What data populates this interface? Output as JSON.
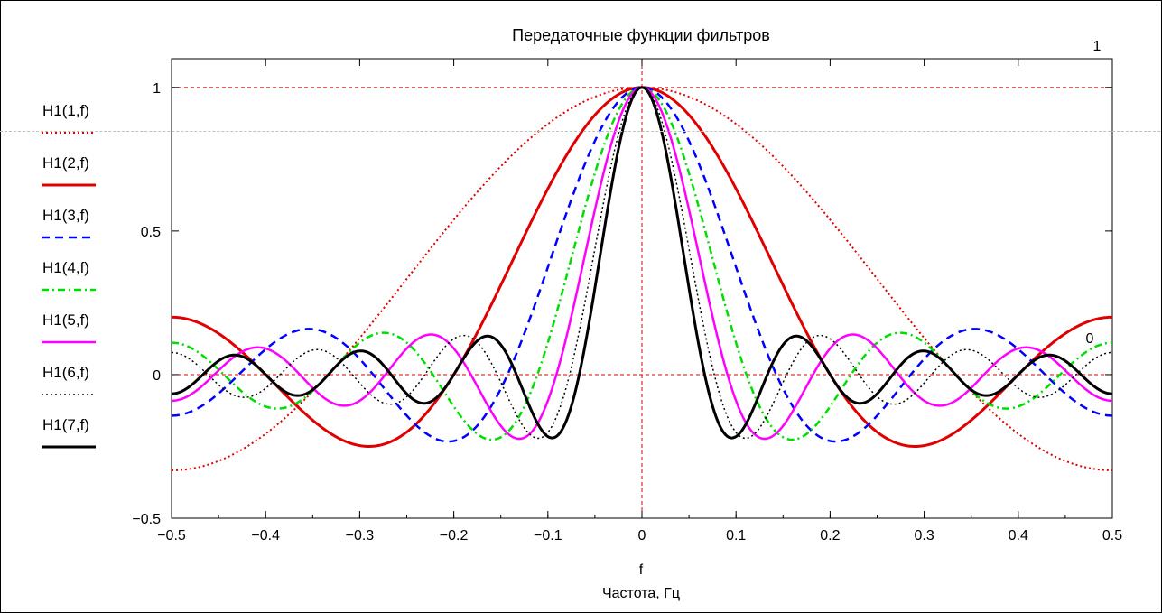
{
  "chart_data": {
    "type": "line",
    "title": "Передаточные функции фильтров",
    "xvar": "f",
    "xlabel": "Частота, Гц",
    "xlim": [
      -0.5,
      0.5
    ],
    "ylim": [
      -0.5,
      1.1
    ],
    "xticks": [
      -0.5,
      -0.4,
      -0.3,
      -0.2,
      -0.1,
      0,
      0.1,
      0.2,
      0.3,
      0.4,
      0.5
    ],
    "xtick_labels": [
      "−0.5",
      "−0.4",
      "−0.3",
      "−0.2",
      "−0.1",
      "0",
      "0.1",
      "0.2",
      "0.3",
      "0.4",
      "0.5"
    ],
    "yticks": [
      -0.5,
      0,
      0.5,
      1
    ],
    "ytick_labels": [
      "−0.5",
      "0",
      "0.5",
      "1"
    ],
    "marker_labels": {
      "right_top": "1",
      "right_zero": "0"
    },
    "reference_lines": {
      "horizontal": [
        1,
        0
      ],
      "vertical": [
        0
      ],
      "color": "#e00000",
      "style": "dashed"
    },
    "series": [
      {
        "name": "H1(1,f)",
        "color": "#e00000",
        "style": "dotted",
        "width": 2,
        "half_window": 1
      },
      {
        "name": "H1(2,f)",
        "color": "#e00000",
        "style": "solid",
        "width": 3,
        "half_window": 2
      },
      {
        "name": "H1(3,f)",
        "color": "#0000ff",
        "style": "dashed",
        "width": 2.5,
        "half_window": 3
      },
      {
        "name": "H1(4,f)",
        "color": "#00dd00",
        "style": "dashdot",
        "width": 2.5,
        "half_window": 4
      },
      {
        "name": "H1(5,f)",
        "color": "#ff00ff",
        "style": "solid",
        "width": 2.5,
        "half_window": 5
      },
      {
        "name": "H1(6,f)",
        "color": "#000000",
        "style": "dotted",
        "width": 1.5,
        "half_window": 6
      },
      {
        "name": "H1(7,f)",
        "color": "#000000",
        "style": "solid",
        "width": 3,
        "half_window": 7
      }
    ]
  }
}
